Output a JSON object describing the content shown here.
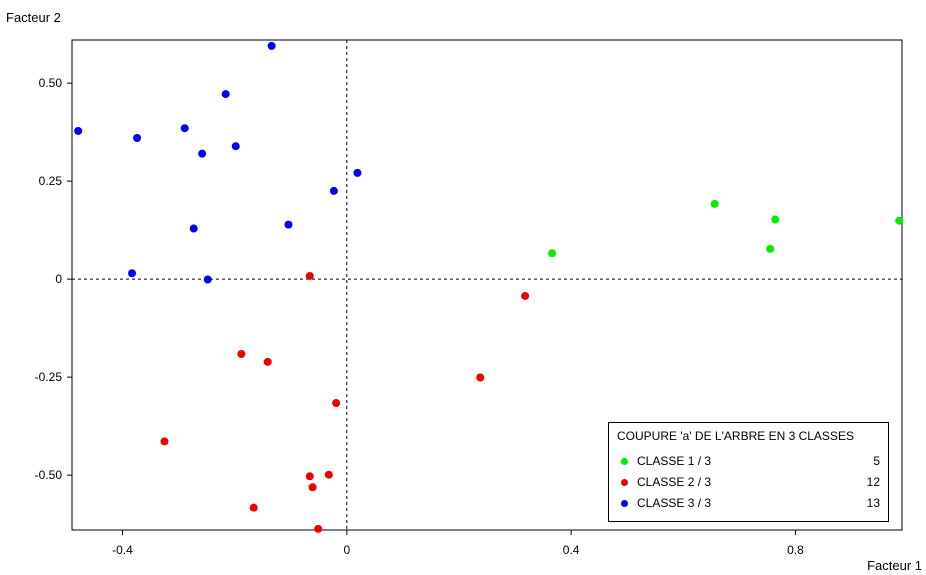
{
  "chart_data": {
    "type": "scatter",
    "xlabel": "Facteur 1",
    "ylabel": "Facteur 2",
    "xlim": [
      -0.49,
      0.99
    ],
    "ylim": [
      -0.64,
      0.61
    ],
    "x_ticks": [
      {
        "value": -0.4,
        "label": "-0.4"
      },
      {
        "value": 0,
        "label": "0"
      },
      {
        "value": 0.4,
        "label": "0.4"
      },
      {
        "value": 0.8,
        "label": "0.8"
      }
    ],
    "y_ticks": [
      {
        "value": 0.5,
        "label": "0.50"
      },
      {
        "value": 0.25,
        "label": "0.25"
      },
      {
        "value": 0,
        "label": "0"
      },
      {
        "value": -0.25,
        "label": "-0.25"
      },
      {
        "value": -0.5,
        "label": "-0.50"
      }
    ],
    "reference_lines": {
      "x": 0,
      "y": 0,
      "style": "dashed"
    },
    "legend": {
      "title": "COUPURE 'a' DE L'ARBRE EN  3 CLASSES",
      "position": "bottom-right"
    },
    "series": [
      {
        "name": "CLASSE  1 / 3",
        "count": "5",
        "color": "#00ee00",
        "points": [
          [
            0.366,
            0.066
          ],
          [
            0.656,
            0.192
          ],
          [
            0.764,
            0.152
          ],
          [
            0.755,
            0.077
          ],
          [
            0.985,
            0.149
          ]
        ]
      },
      {
        "name": "CLASSE  2 / 3",
        "count": "12",
        "color": "#ee0000",
        "points": [
          [
            -0.066,
            0.008
          ],
          [
            0.318,
            -0.043
          ],
          [
            0.238,
            -0.251
          ],
          [
            -0.188,
            -0.191
          ],
          [
            -0.141,
            -0.211
          ],
          [
            -0.019,
            -0.316
          ],
          [
            -0.325,
            -0.414
          ],
          [
            -0.066,
            -0.503
          ],
          [
            -0.032,
            -0.499
          ],
          [
            -0.061,
            -0.531
          ],
          [
            -0.166,
            -0.583
          ],
          [
            -0.051,
            -0.637
          ]
        ]
      },
      {
        "name": "CLASSE  3 / 3",
        "count": "13",
        "color": "#0000ee",
        "points": [
          [
            -0.479,
            0.378
          ],
          [
            -0.374,
            0.36
          ],
          [
            -0.289,
            0.385
          ],
          [
            -0.258,
            0.32
          ],
          [
            -0.216,
            0.472
          ],
          [
            -0.198,
            0.339
          ],
          [
            -0.134,
            0.595
          ],
          [
            -0.023,
            0.225
          ],
          [
            0.019,
            0.271
          ],
          [
            -0.104,
            0.139
          ],
          [
            -0.273,
            0.129
          ],
          [
            -0.383,
            0.015
          ],
          [
            -0.248,
            -0.001
          ]
        ]
      }
    ]
  }
}
